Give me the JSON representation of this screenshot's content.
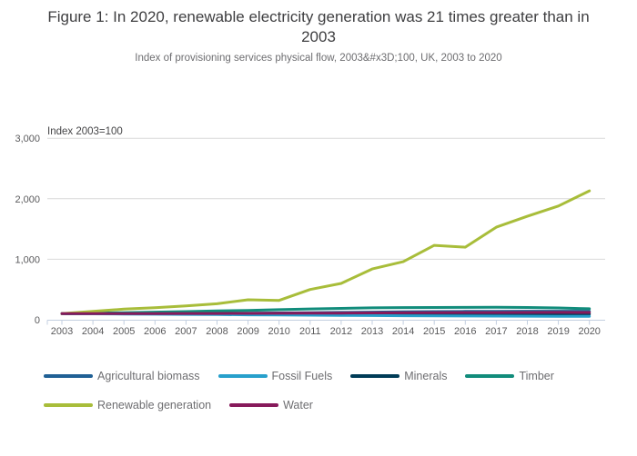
{
  "header": {
    "title": "Figure 1: In 2020, renewable electricity generation was 21 times greater than in 2003",
    "subtitle": "Index of provisioning services physical flow, 2003&#x3D;100, UK, 2003 to 2020"
  },
  "chart_data": {
    "type": "line",
    "title": "Figure 1: In 2020, renewable electricity generation was 21 times greater than in 2003",
    "subtitle": "Index of provisioning services physical flow, 2003&#x3D;100, UK, 2003 to 2020",
    "axis_title": "Index 2003=100",
    "x": [
      2003,
      2004,
      2005,
      2006,
      2007,
      2008,
      2009,
      2010,
      2011,
      2012,
      2013,
      2014,
      2015,
      2016,
      2017,
      2018,
      2019,
      2020
    ],
    "xtick_labels": [
      "2003",
      "2004",
      "2005",
      "2006",
      "2007",
      "2008",
      "2009",
      "2010",
      "2011",
      "2012",
      "2013",
      "2014",
      "2015",
      "2016",
      "2017",
      "2018",
      "2019",
      "2020"
    ],
    "ylim": [
      0,
      3000
    ],
    "yticks": [
      {
        "value": 0,
        "label": "0"
      },
      {
        "value": 1000,
        "label": "1,000"
      },
      {
        "value": 2000,
        "label": "2,000"
      },
      {
        "value": 3000,
        "label": "3,000"
      }
    ],
    "grid": "horizontal",
    "legend_position": "bottom",
    "series": [
      {
        "name": "Minerals",
        "color": "#003C57",
        "values": [
          100,
          101,
          101,
          100,
          99,
          95,
          88,
          90,
          92,
          93,
          94,
          95,
          96,
          96,
          96,
          96,
          96,
          95
        ]
      },
      {
        "name": "Agricultural biomass",
        "color": "#206095",
        "values": [
          100,
          102,
          104,
          105,
          107,
          109,
          110,
          113,
          117,
          121,
          126,
          131,
          135,
          138,
          140,
          141,
          141,
          140
        ]
      },
      {
        "name": "Fossil Fuels",
        "color": "#27A0CC",
        "values": [
          100,
          97,
          94,
          91,
          88,
          85,
          81,
          78,
          75,
          72,
          69,
          66,
          64,
          62,
          60,
          58,
          56,
          55
        ]
      },
      {
        "name": "Timber",
        "color": "#118C7B",
        "values": [
          100,
          108,
          117,
          126,
          135,
          145,
          155,
          166,
          178,
          188,
          196,
          201,
          203,
          204,
          205,
          203,
          195,
          182
        ]
      },
      {
        "name": "Renewable generation",
        "color": "#A8BD3A",
        "values": [
          100,
          140,
          175,
          200,
          230,
          265,
          330,
          320,
          500,
          600,
          840,
          960,
          1230,
          1200,
          1530,
          1710,
          1880,
          2130
        ]
      },
      {
        "name": "Water",
        "color": "#871A5B",
        "values": [
          100,
          101,
          101,
          102,
          103,
          104,
          105,
          106,
          108,
          110,
          112,
          114,
          116,
          118,
          119,
          120,
          121,
          120
        ]
      }
    ]
  },
  "legend": {
    "items": [
      {
        "label": "Agricultural biomass",
        "color": "#206095"
      },
      {
        "label": "Fossil Fuels",
        "color": "#27A0CC"
      },
      {
        "label": "Minerals",
        "color": "#003C57"
      },
      {
        "label": "Timber",
        "color": "#118C7B"
      },
      {
        "label": "Renewable generation",
        "color": "#A8BD3A"
      },
      {
        "label": "Water",
        "color": "#871A5B"
      }
    ]
  },
  "colors": {
    "gridline": "#d9d9d9",
    "axis": "#c3cfe0",
    "title_text": "#3e3e40",
    "muted_text": "#6d6d70"
  }
}
